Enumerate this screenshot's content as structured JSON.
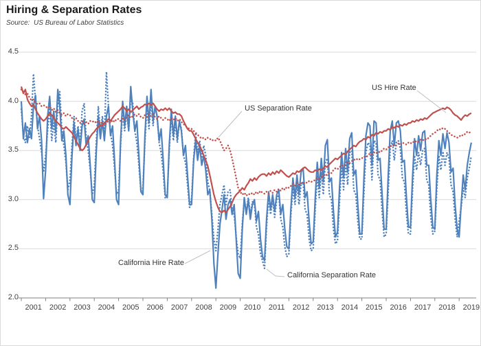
{
  "header": {
    "title": "Hiring & Separation Rates",
    "source": "Source:  US Bureau of Labor Statistics"
  },
  "annotations": [
    {
      "id": "us-hire",
      "label": "US Hire Rate"
    },
    {
      "id": "us-sep",
      "label": "US Separation Rate"
    },
    {
      "id": "ca-hire",
      "label": "California Hire Rate"
    },
    {
      "id": "ca-sep",
      "label": "California Separation Rate"
    }
  ],
  "chart_data": {
    "type": "line",
    "title": "Hiring & Separation Rates",
    "subtitle": "Source:  US Bureau of Labor Statistics",
    "x_unit": "monthly, January 2001 - July 2019",
    "x_start_year": 2001,
    "x_ticks": [
      "2001",
      "2002",
      "2003",
      "2004",
      "2005",
      "2006",
      "2007",
      "2008",
      "2009",
      "2010",
      "2011",
      "2012",
      "2013",
      "2014",
      "2015",
      "2016",
      "2017",
      "2018",
      "2019"
    ],
    "y_ticks": [
      "4.5",
      "4.0",
      "3.5",
      "3.0",
      "2.5",
      "2.0"
    ],
    "y_tick_values": [
      4.5,
      4.0,
      3.5,
      3.0,
      2.5,
      2.0
    ],
    "ylim": [
      2.0,
      4.5
    ],
    "grid": true,
    "legend_position": "inline-annotations",
    "colors": {
      "us": "#C0504D",
      "california": "#4F81BD",
      "grid": "#D9D9D9",
      "axis": "#808080",
      "leader": "#BFBFBF"
    },
    "series": [
      {
        "name": "California Hire Rate",
        "color": "#4F81BD",
        "style": "solid",
        "values": [
          4.0,
          3.62,
          3.78,
          3.58,
          3.72,
          3.62,
          3.95,
          4.06,
          3.72,
          3.85,
          3.6,
          3.01,
          3.3,
          3.85,
          4.05,
          3.72,
          3.9,
          3.68,
          4.12,
          3.95,
          3.6,
          3.7,
          3.45,
          3.05,
          2.95,
          3.45,
          3.78,
          3.55,
          3.72,
          3.5,
          3.75,
          3.82,
          3.55,
          3.65,
          3.35,
          3.0,
          2.97,
          3.5,
          3.85,
          3.62,
          3.8,
          3.6,
          3.85,
          3.95,
          3.65,
          3.75,
          3.4,
          3.0,
          2.95,
          3.6,
          4.0,
          3.75,
          3.95,
          3.7,
          4.15,
          3.9,
          3.7,
          3.8,
          3.45,
          3.08,
          3.05,
          3.65,
          4.05,
          3.78,
          4.12,
          3.8,
          3.95,
          3.85,
          3.6,
          3.72,
          3.4,
          3.05,
          3.02,
          3.55,
          3.92,
          3.65,
          3.85,
          3.62,
          3.8,
          3.7,
          3.45,
          3.55,
          3.25,
          2.95,
          2.95,
          3.4,
          3.6,
          3.4,
          3.55,
          3.35,
          3.45,
          3.3,
          3.05,
          3.1,
          2.8,
          2.35,
          2.1,
          2.45,
          2.75,
          2.9,
          3.05,
          2.8,
          2.95,
          3.0,
          2.85,
          2.95,
          2.6,
          2.25,
          2.2,
          2.7,
          3.02,
          2.85,
          3.0,
          2.8,
          2.95,
          3.0,
          2.78,
          2.88,
          2.6,
          2.42,
          2.38,
          2.8,
          3.08,
          2.9,
          3.05,
          2.88,
          3.05,
          3.1,
          2.85,
          2.95,
          2.7,
          2.52,
          2.5,
          2.92,
          3.22,
          3.02,
          3.25,
          3.05,
          3.28,
          3.32,
          3.02,
          3.08,
          2.78,
          2.55,
          2.57,
          3.02,
          3.38,
          3.12,
          3.42,
          3.18,
          3.55,
          3.61,
          3.18,
          3.22,
          2.88,
          2.62,
          2.67,
          3.12,
          3.48,
          3.22,
          3.52,
          3.28,
          3.62,
          3.68,
          3.25,
          3.3,
          2.95,
          2.65,
          2.65,
          3.2,
          3.65,
          3.78,
          3.75,
          3.35,
          3.8,
          3.78,
          3.4,
          3.42,
          3.05,
          2.7,
          2.7,
          3.25,
          3.7,
          3.8,
          3.55,
          3.78,
          3.8,
          3.7,
          3.38,
          3.4,
          3.02,
          2.72,
          2.72,
          3.22,
          3.62,
          3.45,
          3.65,
          3.5,
          3.68,
          3.7,
          3.35,
          3.35,
          3.0,
          2.72,
          2.7,
          3.25,
          3.6,
          3.45,
          3.67,
          3.52,
          3.68,
          3.58,
          3.28,
          3.32,
          2.95,
          2.7,
          2.62,
          2.95,
          3.25,
          3.1,
          3.35,
          3.48,
          3.58
        ]
      },
      {
        "name": "California Separation Rate",
        "color": "#4F81BD",
        "style": "dotted",
        "values": [
          3.92,
          3.65,
          3.58,
          3.75,
          3.62,
          3.85,
          4.28,
          4.0,
          3.75,
          3.62,
          3.48,
          3.28,
          3.45,
          3.7,
          3.95,
          3.6,
          3.78,
          3.58,
          3.95,
          4.1,
          3.7,
          3.55,
          3.38,
          3.1,
          3.2,
          3.55,
          3.85,
          3.6,
          3.75,
          3.55,
          3.9,
          3.98,
          3.62,
          3.5,
          3.3,
          3.05,
          3.15,
          3.6,
          3.95,
          3.68,
          3.85,
          3.65,
          4.3,
          3.95,
          3.68,
          3.55,
          3.32,
          3.05,
          3.1,
          3.55,
          3.9,
          3.7,
          3.88,
          3.7,
          4.05,
          3.98,
          3.7,
          3.58,
          3.35,
          3.08,
          3.12,
          3.58,
          3.95,
          3.72,
          4.0,
          3.75,
          3.95,
          3.85,
          3.58,
          3.48,
          3.28,
          3.02,
          3.05,
          3.5,
          3.85,
          3.6,
          3.78,
          3.58,
          3.8,
          3.72,
          3.45,
          3.38,
          3.15,
          2.92,
          3.0,
          3.42,
          3.68,
          3.48,
          3.6,
          3.42,
          3.55,
          3.45,
          3.18,
          3.1,
          2.85,
          2.6,
          2.48,
          2.7,
          2.95,
          3.05,
          3.15,
          2.95,
          3.08,
          3.1,
          2.9,
          2.85,
          2.62,
          2.45,
          2.4,
          2.75,
          3.0,
          2.88,
          3.02,
          2.85,
          2.98,
          2.95,
          2.72,
          2.65,
          2.45,
          2.38,
          2.3,
          2.72,
          3.02,
          2.85,
          3.0,
          2.82,
          3.0,
          3.05,
          2.8,
          2.72,
          2.52,
          2.42,
          2.45,
          2.85,
          3.12,
          2.95,
          3.15,
          2.95,
          3.15,
          3.18,
          2.9,
          2.85,
          2.6,
          2.48,
          2.5,
          2.9,
          3.25,
          3.02,
          3.28,
          3.05,
          3.38,
          3.42,
          3.05,
          3.0,
          2.7,
          2.55,
          2.58,
          2.98,
          3.35,
          3.1,
          3.38,
          3.15,
          3.48,
          3.5,
          3.1,
          3.05,
          2.78,
          2.6,
          2.6,
          3.05,
          3.48,
          3.58,
          3.55,
          3.2,
          3.6,
          3.58,
          3.25,
          3.2,
          2.88,
          2.62,
          2.65,
          3.08,
          3.52,
          3.6,
          3.4,
          3.58,
          3.6,
          3.52,
          3.22,
          3.18,
          2.85,
          2.65,
          2.65,
          3.08,
          3.45,
          3.3,
          3.48,
          3.35,
          3.5,
          3.52,
          3.2,
          3.15,
          2.82,
          2.65,
          2.68,
          3.1,
          3.45,
          3.3,
          3.49,
          3.35,
          3.48,
          3.42,
          3.15,
          3.08,
          2.8,
          2.62,
          2.78,
          2.92,
          3.12,
          3.02,
          3.22,
          3.32,
          3.45
        ]
      },
      {
        "name": "US Hire Rate",
        "color": "#C0504D",
        "style": "solid",
        "values": [
          4.15,
          4.08,
          4.12,
          4.02,
          3.98,
          3.95,
          3.97,
          3.92,
          3.88,
          3.85,
          3.82,
          3.8,
          3.82,
          3.85,
          3.88,
          3.86,
          3.83,
          3.8,
          3.78,
          3.76,
          3.73,
          3.72,
          3.74,
          3.72,
          3.7,
          3.68,
          3.64,
          3.6,
          3.56,
          3.52,
          3.5,
          3.52,
          3.56,
          3.6,
          3.64,
          3.67,
          3.69,
          3.72,
          3.74,
          3.76,
          3.75,
          3.78,
          3.8,
          3.82,
          3.8,
          3.83,
          3.86,
          3.88,
          3.9,
          3.92,
          3.95,
          3.93,
          3.9,
          3.92,
          3.89,
          3.91,
          3.93,
          3.95,
          3.92,
          3.94,
          3.95,
          3.97,
          3.96,
          3.98,
          3.96,
          3.98,
          3.95,
          3.92,
          3.9,
          3.92,
          3.91,
          3.93,
          3.91,
          3.93,
          3.9,
          3.88,
          3.89,
          3.87,
          3.87,
          3.85,
          3.8,
          3.76,
          3.72,
          3.7,
          3.7,
          3.66,
          3.62,
          3.58,
          3.55,
          3.5,
          3.45,
          3.4,
          3.34,
          3.25,
          3.15,
          3.05,
          2.98,
          2.92,
          2.88,
          2.87,
          2.89,
          2.87,
          2.9,
          2.93,
          2.97,
          3.02,
          3.05,
          3.07,
          3.09,
          3.12,
          3.1,
          3.14,
          3.17,
          3.21,
          3.19,
          3.22,
          3.2,
          3.23,
          3.25,
          3.26,
          3.26,
          3.24,
          3.27,
          3.25,
          3.28,
          3.26,
          3.29,
          3.27,
          3.3,
          3.28,
          3.26,
          3.24,
          3.23,
          3.25,
          3.27,
          3.26,
          3.29,
          3.28,
          3.3,
          3.32,
          3.33,
          3.31,
          3.29,
          3.28,
          3.28,
          3.3,
          3.29,
          3.31,
          3.3,
          3.32,
          3.34,
          3.33,
          3.36,
          3.38,
          3.4,
          3.42,
          3.41,
          3.43,
          3.45,
          3.47,
          3.46,
          3.49,
          3.51,
          3.53,
          3.55,
          3.54,
          3.57,
          3.59,
          3.6,
          3.62,
          3.61,
          3.64,
          3.63,
          3.66,
          3.65,
          3.68,
          3.67,
          3.69,
          3.68,
          3.7,
          3.7,
          3.72,
          3.71,
          3.74,
          3.73,
          3.75,
          3.74,
          3.76,
          3.75,
          3.77,
          3.76,
          3.78,
          3.78,
          3.8,
          3.79,
          3.81,
          3.8,
          3.82,
          3.81,
          3.83,
          3.82,
          3.84,
          3.86,
          3.88,
          3.89,
          3.9,
          3.91,
          3.92,
          3.93,
          3.92,
          3.94,
          3.93,
          3.91,
          3.88,
          3.86,
          3.85,
          3.83,
          3.81,
          3.84,
          3.86,
          3.85,
          3.87,
          3.88
        ]
      },
      {
        "name": "US Separation Rate",
        "color": "#C0504D",
        "style": "dotted",
        "values": [
          4.12,
          4.1,
          4.07,
          4.08,
          4.04,
          4.01,
          4.02,
          3.99,
          3.97,
          3.98,
          3.95,
          3.96,
          3.95,
          3.93,
          3.95,
          3.91,
          3.93,
          3.89,
          3.91,
          3.88,
          3.86,
          3.88,
          3.85,
          3.87,
          3.86,
          3.83,
          3.81,
          3.83,
          3.8,
          3.78,
          3.8,
          3.77,
          3.79,
          3.77,
          3.8,
          3.79,
          3.8,
          3.78,
          3.8,
          3.77,
          3.79,
          3.76,
          3.78,
          3.8,
          3.78,
          3.81,
          3.79,
          3.82,
          3.82,
          3.8,
          3.83,
          3.81,
          3.84,
          3.86,
          3.83,
          3.85,
          3.87,
          3.85,
          3.87,
          3.84,
          3.83,
          3.86,
          3.84,
          3.87,
          3.85,
          3.87,
          3.84,
          3.82,
          3.85,
          3.83,
          3.81,
          3.83,
          3.82,
          3.8,
          3.83,
          3.81,
          3.83,
          3.8,
          3.82,
          3.79,
          3.77,
          3.75,
          3.73,
          3.72,
          3.72,
          3.7,
          3.68,
          3.66,
          3.64,
          3.62,
          3.63,
          3.61,
          3.63,
          3.62,
          3.6,
          3.61,
          3.6,
          3.63,
          3.6,
          3.55,
          3.5,
          3.52,
          3.55,
          3.5,
          3.42,
          3.32,
          3.22,
          3.12,
          3.08,
          3.05,
          3.07,
          3.04,
          3.06,
          3.05,
          3.07,
          3.05,
          3.08,
          3.06,
          3.09,
          3.07,
          3.06,
          3.08,
          3.06,
          3.09,
          3.07,
          3.1,
          3.08,
          3.11,
          3.09,
          3.12,
          3.1,
          3.13,
          3.12,
          3.14,
          3.16,
          3.14,
          3.17,
          3.15,
          3.17,
          3.16,
          3.18,
          3.17,
          3.19,
          3.18,
          3.19,
          3.2,
          3.22,
          3.21,
          3.23,
          3.25,
          3.24,
          3.26,
          3.28,
          3.27,
          3.3,
          3.32,
          3.31,
          3.33,
          3.35,
          3.34,
          3.36,
          3.38,
          3.37,
          3.39,
          3.41,
          3.4,
          3.42,
          3.41,
          3.42,
          3.44,
          3.43,
          3.45,
          3.47,
          3.46,
          3.48,
          3.47,
          3.49,
          3.48,
          3.5,
          3.52,
          3.51,
          3.53,
          3.55,
          3.54,
          3.56,
          3.55,
          3.57,
          3.56,
          3.58,
          3.57,
          3.56,
          3.58,
          3.57,
          3.59,
          3.58,
          3.6,
          3.59,
          3.61,
          3.6,
          3.62,
          3.61,
          3.63,
          3.65,
          3.67,
          3.68,
          3.7,
          3.72,
          3.71,
          3.73,
          3.72,
          3.7,
          3.68,
          3.66,
          3.65,
          3.64,
          3.63,
          3.64,
          3.66,
          3.65,
          3.67,
          3.69,
          3.68,
          3.7
        ]
      }
    ]
  }
}
